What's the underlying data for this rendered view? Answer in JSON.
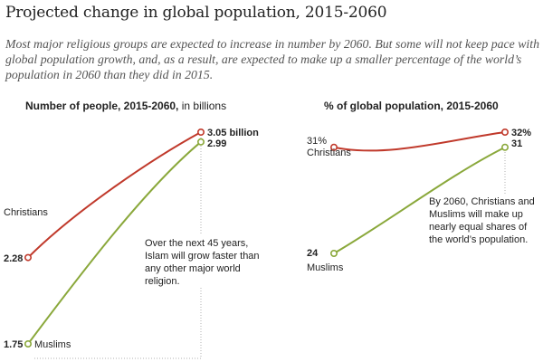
{
  "title": "Projected change in global population, 2015-2060",
  "subtitle": "Most major religious groups are expected to increase in number by 2060. But some will not keep pace with global population growth, and, as a result, are expected to make up a smaller percentage of the world’s population in 2060 than they did in 2015.",
  "colors": {
    "christians": "#c0392b",
    "muslims": "#8aa83b",
    "guide": "#b0b0b0"
  },
  "chart_data": [
    {
      "type": "line",
      "title_bold": "Number of people, 2015-2060,",
      "title_light": " in billions",
      "x": [
        2015,
        2060
      ],
      "ylim": [
        1.75,
        3.05
      ],
      "series": [
        {
          "name": "Christians",
          "values": [
            2.28,
            3.05
          ],
          "start_label": "2.28",
          "end_label": "3.05 billion"
        },
        {
          "name": "Muslims",
          "values": [
            1.75,
            2.99
          ],
          "start_label": "1.75",
          "end_label": "2.99"
        }
      ],
      "annotation": "Over the next 45 years, Islam will grow faster than any other major world religion."
    },
    {
      "type": "line",
      "title_bold": "% of global population, 2015-2060",
      "x": [
        2015,
        2060
      ],
      "ylim": [
        24,
        32
      ],
      "series": [
        {
          "name": "Christians",
          "values": [
            31,
            32
          ],
          "start_label": "31%",
          "end_label": "32%"
        },
        {
          "name": "Muslims",
          "values": [
            24,
            31
          ],
          "start_label": "24",
          "end_label": "31"
        }
      ],
      "annotation": "By 2060, Christians and Muslims will make up nearly equal shares of the world’s population."
    }
  ]
}
